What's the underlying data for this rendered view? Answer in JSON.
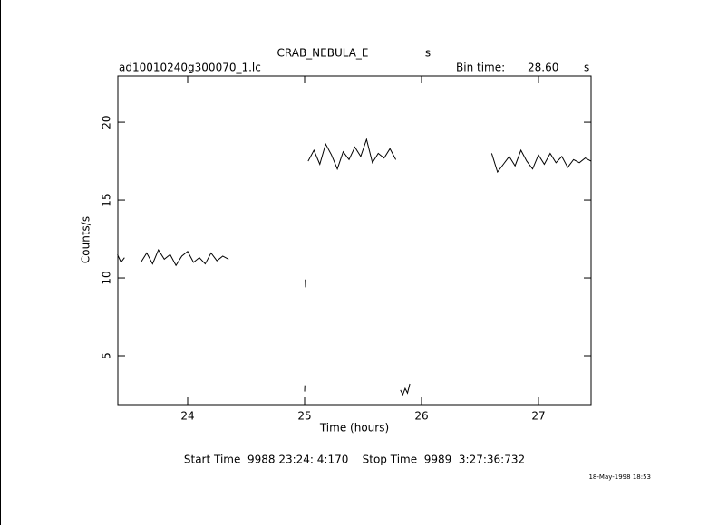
{
  "chart_data": {
    "type": "line",
    "title": "CRAB_NEBULA_E",
    "title_suffix": "s",
    "file_label": "ad10010240g300070_1.lc",
    "bin_time_label": "Bin time:",
    "bin_time": "28.60",
    "bin_time_unit": "s",
    "x_label": "Time (hours)",
    "y_label": "Counts/s",
    "footer": "Start Time  9988 23:24: 4:170    Stop Time  9989  3:27:36:732",
    "date_stamp": "18-May-1998 18:53",
    "xlim": [
      23.403,
      27.45
    ],
    "ylim": [
      1.86,
      22.97
    ],
    "xticks": [
      24,
      25,
      26,
      27
    ],
    "yticks": [
      5,
      10,
      15,
      20
    ],
    "color": "#000000",
    "x": [
      23.4,
      23.43,
      23.46,
      23.53,
      23.6,
      23.65,
      23.7,
      23.75,
      23.8,
      23.85,
      23.9,
      23.95,
      24.0,
      24.05,
      24.1,
      24.15,
      24.2,
      24.25,
      24.3,
      24.35,
      24.7,
      25.0,
      25.002,
      25.004,
      25.006,
      25.008,
      25.01,
      25.03,
      25.08,
      25.13,
      25.18,
      25.23,
      25.28,
      25.33,
      25.38,
      25.43,
      25.48,
      25.53,
      25.58,
      25.63,
      25.68,
      25.73,
      25.78,
      25.8,
      25.82,
      25.84,
      25.86,
      25.88,
      25.9,
      26.2,
      26.6,
      26.65,
      26.7,
      26.75,
      26.8,
      26.85,
      26.9,
      26.95,
      27.0,
      27.05,
      27.1,
      27.15,
      27.2,
      27.25,
      27.3,
      27.35,
      27.4,
      27.45
    ],
    "values": [
      11.5,
      11.0,
      11.3,
      null,
      11.0,
      11.6,
      10.9,
      11.8,
      11.2,
      11.5,
      10.8,
      11.4,
      11.7,
      11.0,
      11.3,
      10.9,
      11.6,
      11.1,
      11.4,
      11.2,
      null,
      2.7,
      3.1,
      null,
      9.9,
      9.4,
      null,
      17.5,
      18.2,
      17.3,
      18.6,
      17.9,
      17.0,
      18.1,
      17.6,
      18.4,
      17.8,
      18.9,
      17.4,
      18.0,
      17.7,
      18.3,
      17.6,
      null,
      2.8,
      2.5,
      2.9,
      2.6,
      3.2,
      null,
      18.0,
      16.8,
      17.3,
      17.8,
      17.2,
      18.2,
      17.5,
      17.0,
      17.9,
      17.3,
      18.0,
      17.4,
      17.8,
      17.1,
      17.6,
      17.4,
      17.7,
      17.5
    ]
  }
}
